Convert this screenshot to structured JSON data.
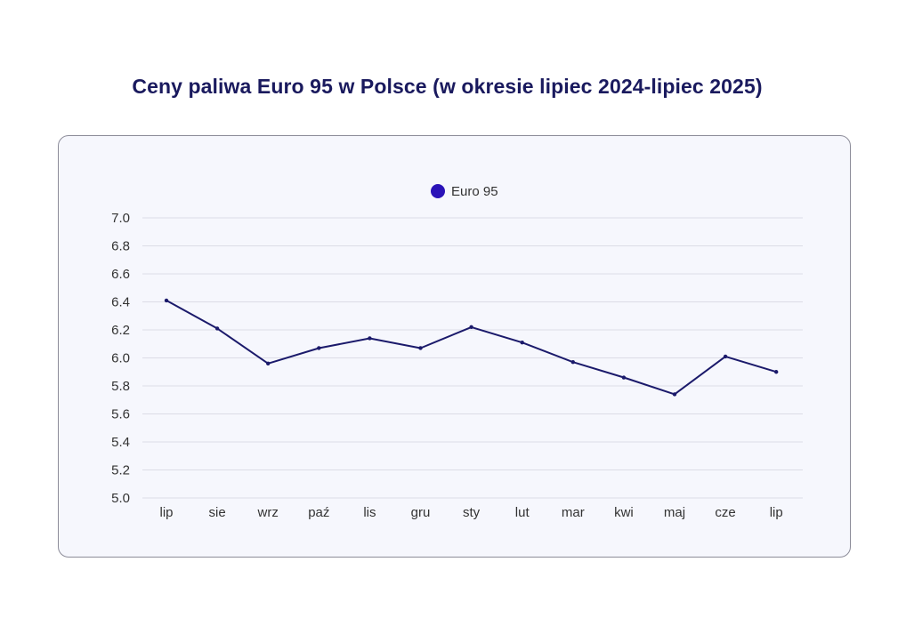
{
  "page": {
    "title": "Ceny paliwa Euro 95 w Polsce (w okresie lipiec 2024-lipiec 2025)"
  },
  "colors": {
    "title": "#1a1a5e",
    "series": "#1b1a6b",
    "legend_marker": "#2a12b8",
    "grid": "#dcdce6",
    "panel_bg": "#f6f7fd",
    "panel_border": "#8c8c99"
  },
  "chart_data": {
    "type": "line",
    "title": "Ceny paliwa Euro 95 w Polsce (w okresie lipiec 2024-lipiec 2025)",
    "categories": [
      "lip",
      "sie",
      "wrz",
      "paź",
      "lis",
      "gru",
      "sty",
      "lut",
      "mar",
      "kwi",
      "maj",
      "cze",
      "lip"
    ],
    "series": [
      {
        "name": "Euro 95",
        "values": [
          6.41,
          6.21,
          5.96,
          6.07,
          6.14,
          6.07,
          6.22,
          6.11,
          5.97,
          5.86,
          5.74,
          6.01,
          5.9
        ]
      }
    ],
    "ylim": [
      5.0,
      7.0
    ],
    "yticks": [
      "5.0",
      "5.2",
      "5.4",
      "5.6",
      "5.8",
      "6.0",
      "6.2",
      "6.4",
      "6.6",
      "6.8",
      "7.0"
    ],
    "xlabel": "",
    "ylabel": "",
    "grid": true,
    "legend_position": "top-center"
  }
}
